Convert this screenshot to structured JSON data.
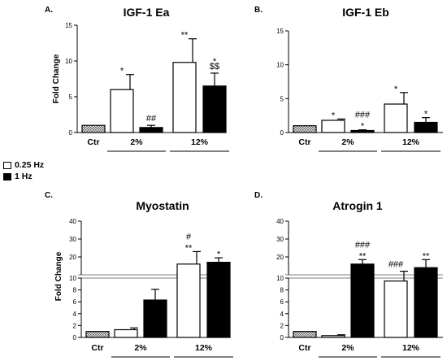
{
  "legend": [
    {
      "label": "0.25 Hz",
      "fill": "#ffffff"
    },
    {
      "label": "1 Hz",
      "fill": "#000000"
    }
  ],
  "colors": {
    "ctr_fill": "hatched",
    "low_freq": "#ffffff",
    "high_freq": "#000000"
  },
  "chart_data": [
    {
      "panel": "A.",
      "title": "IGF-1 Ea",
      "type": "bar",
      "ylabel": "Fold Change",
      "ylim": [
        0,
        15
      ],
      "yticks": [
        0,
        5,
        10,
        15
      ],
      "groups": [
        "Ctr",
        "2%",
        "12%"
      ],
      "bars": [
        {
          "group": "Ctr",
          "series": "Ctr",
          "value": 1.0,
          "err": 0,
          "label": ""
        },
        {
          "group": "2%",
          "series": "0.25 Hz",
          "value": 6.0,
          "err": 2.1,
          "label": "*"
        },
        {
          "group": "2%",
          "series": "1 Hz",
          "value": 0.7,
          "err": 0.3,
          "label": "##"
        },
        {
          "group": "12%",
          "series": "0.25 Hz",
          "value": 9.8,
          "err": 3.3,
          "label": "**"
        },
        {
          "group": "12%",
          "series": "1 Hz",
          "value": 6.5,
          "err": 1.8,
          "label": "*\n$$"
        }
      ]
    },
    {
      "panel": "B.",
      "title": "IGF-1 Eb",
      "type": "bar",
      "ylabel": "",
      "ylim": [
        0,
        15
      ],
      "yticks": [
        0,
        5,
        10,
        15
      ],
      "groups": [
        "Ctr",
        "2%",
        "12%"
      ],
      "bars": [
        {
          "group": "Ctr",
          "series": "Ctr",
          "value": 1.0,
          "err": 0,
          "label": ""
        },
        {
          "group": "2%",
          "series": "0.25 Hz",
          "value": 1.8,
          "err": 0.2,
          "label": "*"
        },
        {
          "group": "2%",
          "series": "1 Hz",
          "value": 0.3,
          "err": 0.1,
          "label": "###\n*"
        },
        {
          "group": "12%",
          "series": "0.25 Hz",
          "value": 4.2,
          "err": 1.7,
          "label": "*"
        },
        {
          "group": "12%",
          "series": "1 Hz",
          "value": 1.5,
          "err": 0.7,
          "label": "*"
        }
      ]
    },
    {
      "panel": "C.",
      "title": "Myostatin",
      "type": "bar",
      "ylabel": "Fold Change",
      "ylim": [
        0,
        40
      ],
      "broken_axis": {
        "lower": [
          0,
          10
        ],
        "upper": [
          10,
          40
        ]
      },
      "yticks": [
        0,
        2,
        4,
        6,
        8,
        10,
        20,
        30,
        40
      ],
      "groups": [
        "Ctr",
        "2%",
        "12%"
      ],
      "bars": [
        {
          "group": "Ctr",
          "series": "Ctr",
          "value": 1.0,
          "err": 0,
          "label": ""
        },
        {
          "group": "2%",
          "series": "0.25 Hz",
          "value": 1.3,
          "err": 0.3,
          "label": ""
        },
        {
          "group": "2%",
          "series": "1 Hz",
          "value": 6.3,
          "err": 1.8,
          "label": ""
        },
        {
          "group": "12%",
          "series": "0.25 Hz",
          "value": 16.0,
          "err": 7.0,
          "label": "#\n**"
        },
        {
          "group": "12%",
          "series": "1 Hz",
          "value": 17.0,
          "err": 2.5,
          "label": "*"
        }
      ]
    },
    {
      "panel": "D.",
      "title": "Atrogin 1",
      "type": "bar",
      "ylabel": "",
      "ylim": [
        0,
        40
      ],
      "broken_axis": {
        "lower": [
          0,
          10
        ],
        "upper": [
          10,
          40
        ]
      },
      "yticks": [
        0,
        2,
        4,
        6,
        8,
        10,
        20,
        30,
        40
      ],
      "groups": [
        "Ctr",
        "2%",
        "12%"
      ],
      "bars": [
        {
          "group": "Ctr",
          "series": "Ctr",
          "value": 1.0,
          "err": 0,
          "label": ""
        },
        {
          "group": "2%",
          "series": "0.25 Hz",
          "value": 0.3,
          "err": 0.15,
          "label": ""
        },
        {
          "group": "2%",
          "series": "1 Hz",
          "value": 16.0,
          "err": 2.5,
          "label": "###\n**"
        },
        {
          "group": "12%",
          "series": "0.25 Hz",
          "value": 9.5,
          "err": 2.5,
          "label": "###"
        },
        {
          "group": "12%",
          "series": "1 Hz",
          "value": 14.0,
          "err": 4.5,
          "label": "**"
        }
      ]
    }
  ]
}
